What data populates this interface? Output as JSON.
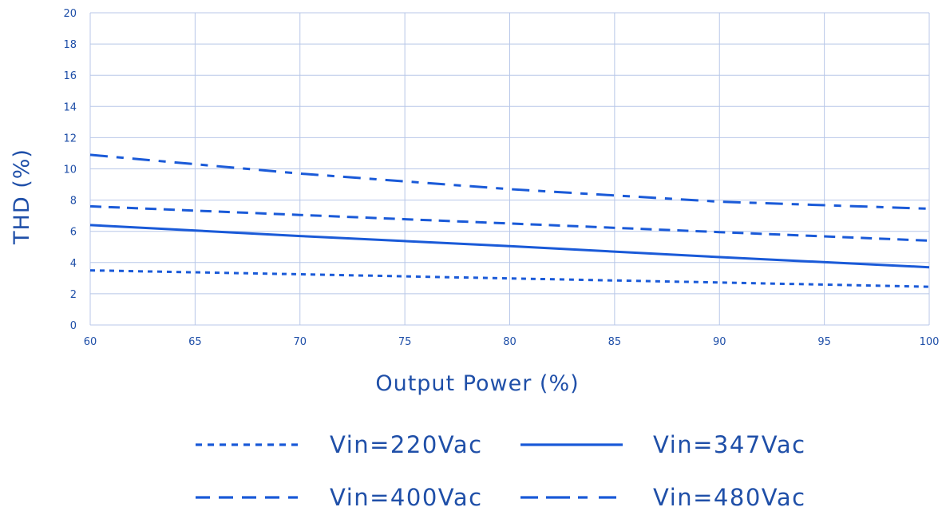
{
  "chart_data": {
    "type": "line",
    "xlabel": "Output Power (%)",
    "ylabel": "THD (%)",
    "xlim": [
      60,
      100
    ],
    "ylim": [
      0,
      20
    ],
    "x_ticks": [
      60,
      65,
      70,
      75,
      80,
      85,
      90,
      95,
      100
    ],
    "y_ticks": [
      0,
      2,
      4,
      6,
      8,
      10,
      12,
      14,
      16,
      18,
      20
    ],
    "grid": true,
    "legend_position": "bottom",
    "line_color": "#1a5ad8",
    "series": [
      {
        "name": "Vin=220Vac",
        "style": "dotted",
        "x": [
          60,
          70,
          80,
          90,
          100
        ],
        "y": [
          3.5,
          3.25,
          2.98,
          2.72,
          2.45
        ]
      },
      {
        "name": "Vin=347Vac",
        "style": "solid",
        "x": [
          60,
          70,
          80,
          90,
          100
        ],
        "y": [
          6.4,
          5.7,
          5.05,
          4.35,
          3.7
        ]
      },
      {
        "name": "Vin=400Vac",
        "style": "dashed",
        "x": [
          60,
          70,
          80,
          90,
          100
        ],
        "y": [
          7.6,
          7.05,
          6.5,
          5.95,
          5.4
        ]
      },
      {
        "name": "Vin=480Vac",
        "style": "long-dash-dot",
        "x": [
          60,
          70,
          80,
          90,
          100
        ],
        "y": [
          10.9,
          9.7,
          8.7,
          7.9,
          7.45
        ]
      }
    ]
  }
}
